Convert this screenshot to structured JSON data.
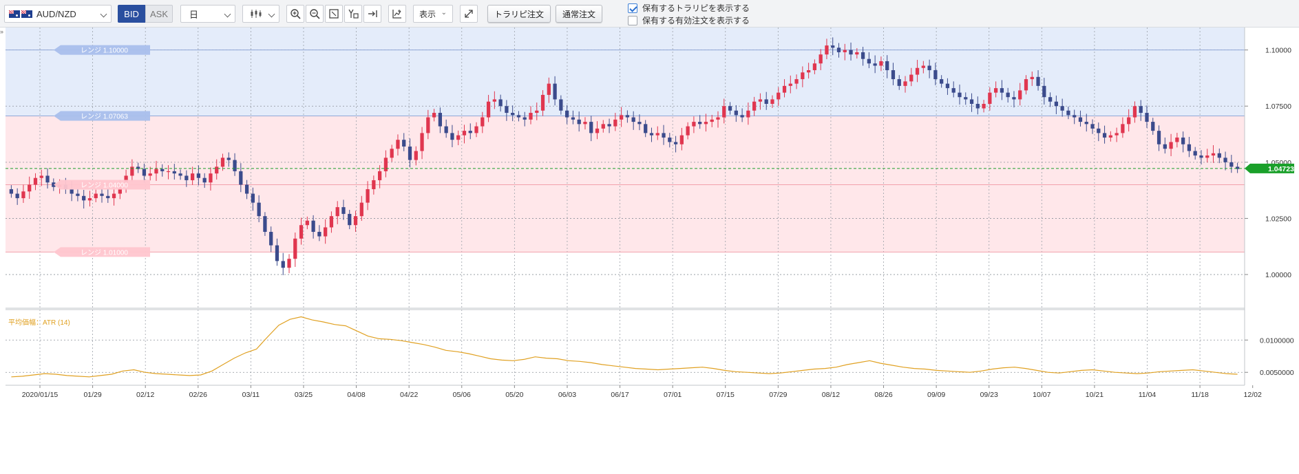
{
  "toolbar": {
    "symbol": "AUD/NZD",
    "bid_label": "BID",
    "ask_label": "ASK",
    "timeframe": "日",
    "display_label": "表示",
    "trap_order_button": "トラリピ注文",
    "normal_order_button": "通常注文",
    "show_positions_label": "保有するトラリピを表示する",
    "show_positions_checked": true,
    "show_orders_label": "保有する有効注文を表示する",
    "show_orders_checked": false
  },
  "colors": {
    "up_candle": "#e0364f",
    "down_candle": "#3b4b8c",
    "blue_zone": "#e4ecfa",
    "red_zone": "#ffe7ea",
    "current_price": "#1aa02a",
    "atr_line": "#e0a020",
    "accent_blue": "#2a4f9f"
  },
  "chart_data": [
    {
      "type": "candlestick",
      "ylim": [
        0.985,
        1.11
      ],
      "y_ticks": [
        {
          "value": 1.1,
          "label": "1.10000"
        },
        {
          "value": 1.075,
          "label": "1.07500"
        },
        {
          "value": 1.05,
          "label": "1.05000"
        },
        {
          "value": 1.025,
          "label": "1.02500"
        },
        {
          "value": 1.0,
          "label": "1.00000"
        }
      ],
      "x_labels": [
        "2020/01/15",
        "01/29",
        "02/12",
        "02/26",
        "03/11",
        "03/25",
        "04/08",
        "04/22",
        "05/06",
        "05/20",
        "06/03",
        "06/17",
        "07/01",
        "07/15",
        "07/29",
        "08/12",
        "08/26",
        "09/09",
        "09/23",
        "10/07",
        "10/21",
        "11/04",
        "11/18",
        "12/02"
      ],
      "current_price": {
        "value": 1.04723,
        "label": "1.04723"
      },
      "zones": [
        {
          "name": "blue",
          "from": 1.0706,
          "to": 1.11
        },
        {
          "name": "red",
          "from": 1.01,
          "to": 1.0706
        }
      ],
      "range_labels": [
        {
          "text": "レンジ 1.10000",
          "value": 1.1
        },
        {
          "text": "レンジ 1.07063",
          "value": 1.07063
        },
        {
          "text": "レンジ 1.04000",
          "value": 1.04
        },
        {
          "text": "レンジ 1.01000",
          "value": 1.01
        }
      ],
      "closes": [
        1.036,
        1.034,
        1.037,
        1.04,
        1.043,
        1.044,
        1.041,
        1.039,
        1.04,
        1.038,
        1.036,
        1.035,
        1.033,
        1.034,
        1.036,
        1.035,
        1.034,
        1.036,
        1.04,
        1.044,
        1.048,
        1.047,
        1.044,
        1.045,
        1.047,
        1.046,
        1.046,
        1.045,
        1.044,
        1.042,
        1.045,
        1.043,
        1.041,
        1.045,
        1.048,
        1.052,
        1.051,
        1.046,
        1.04,
        1.036,
        1.032,
        1.026,
        1.019,
        1.013,
        1.006,
        1.003,
        1.007,
        1.016,
        1.022,
        1.024,
        1.019,
        1.017,
        1.021,
        1.026,
        1.03,
        1.027,
        1.022,
        1.026,
        1.032,
        1.038,
        1.042,
        1.046,
        1.052,
        1.056,
        1.06,
        1.057,
        1.051,
        1.055,
        1.063,
        1.07,
        1.072,
        1.066,
        1.063,
        1.06,
        1.062,
        1.064,
        1.063,
        1.066,
        1.07,
        1.077,
        1.078,
        1.075,
        1.072,
        1.071,
        1.07,
        1.069,
        1.072,
        1.073,
        1.08,
        1.085,
        1.078,
        1.073,
        1.07,
        1.069,
        1.067,
        1.068,
        1.063,
        1.065,
        1.067,
        1.066,
        1.069,
        1.071,
        1.07,
        1.068,
        1.067,
        1.063,
        1.062,
        1.063,
        1.061,
        1.059,
        1.058,
        1.062,
        1.066,
        1.068,
        1.067,
        1.068,
        1.069,
        1.07,
        1.075,
        1.073,
        1.071,
        1.07,
        1.073,
        1.077,
        1.078,
        1.076,
        1.078,
        1.081,
        1.084,
        1.085,
        1.087,
        1.09,
        1.091,
        1.094,
        1.098,
        1.102,
        1.101,
        1.099,
        1.1,
        1.098,
        1.099,
        1.096,
        1.094,
        1.093,
        1.095,
        1.091,
        1.087,
        1.084,
        1.086,
        1.089,
        1.092,
        1.093,
        1.091,
        1.087,
        1.085,
        1.083,
        1.081,
        1.079,
        1.078,
        1.076,
        1.074,
        1.076,
        1.081,
        1.083,
        1.081,
        1.079,
        1.078,
        1.082,
        1.087,
        1.088,
        1.084,
        1.079,
        1.077,
        1.075,
        1.073,
        1.071,
        1.07,
        1.068,
        1.067,
        1.065,
        1.063,
        1.061,
        1.062,
        1.063,
        1.067,
        1.07,
        1.075,
        1.072,
        1.068,
        1.064,
        1.058,
        1.056,
        1.059,
        1.061,
        1.058,
        1.055,
        1.053,
        1.052,
        1.053,
        1.054,
        1.052,
        1.05,
        1.048,
        1.047
      ]
    },
    {
      "type": "line",
      "title": "平均価幅：ATR (14)",
      "ylim": [
        0.003,
        0.0145
      ],
      "y_ticks": [
        {
          "value": 0.01,
          "label": "0.0100000"
        },
        {
          "value": 0.005,
          "label": "0.0050000"
        }
      ],
      "values": [
        0.0043,
        0.0044,
        0.0046,
        0.0048,
        0.0047,
        0.0045,
        0.0044,
        0.0043,
        0.0045,
        0.0047,
        0.0052,
        0.0054,
        0.005,
        0.0048,
        0.0047,
        0.0046,
        0.0045,
        0.0046,
        0.0052,
        0.0062,
        0.0072,
        0.008,
        0.0086,
        0.0105,
        0.0123,
        0.0132,
        0.0136,
        0.0131,
        0.0128,
        0.0124,
        0.0122,
        0.0114,
        0.0106,
        0.0102,
        0.0101,
        0.0099,
        0.0096,
        0.0093,
        0.0089,
        0.0084,
        0.0082,
        0.0079,
        0.0075,
        0.0071,
        0.0069,
        0.0068,
        0.007,
        0.0074,
        0.0072,
        0.0071,
        0.0068,
        0.0067,
        0.0065,
        0.0062,
        0.006,
        0.0058,
        0.0056,
        0.0055,
        0.0054,
        0.0055,
        0.0056,
        0.0057,
        0.0058,
        0.0056,
        0.0053,
        0.0051,
        0.005,
        0.0049,
        0.0048,
        0.0049,
        0.0051,
        0.0053,
        0.0055,
        0.0056,
        0.0058,
        0.0062,
        0.0065,
        0.0068,
        0.0064,
        0.0061,
        0.0058,
        0.0056,
        0.0055,
        0.0053,
        0.0052,
        0.0051,
        0.005,
        0.0052,
        0.0055,
        0.0057,
        0.0058,
        0.0056,
        0.0053,
        0.005,
        0.0049,
        0.0051,
        0.0053,
        0.0054,
        0.0052,
        0.005,
        0.0049,
        0.0048,
        0.0049,
        0.0051,
        0.0052,
        0.0053,
        0.0054,
        0.0052,
        0.005,
        0.0048,
        0.0047
      ]
    }
  ]
}
